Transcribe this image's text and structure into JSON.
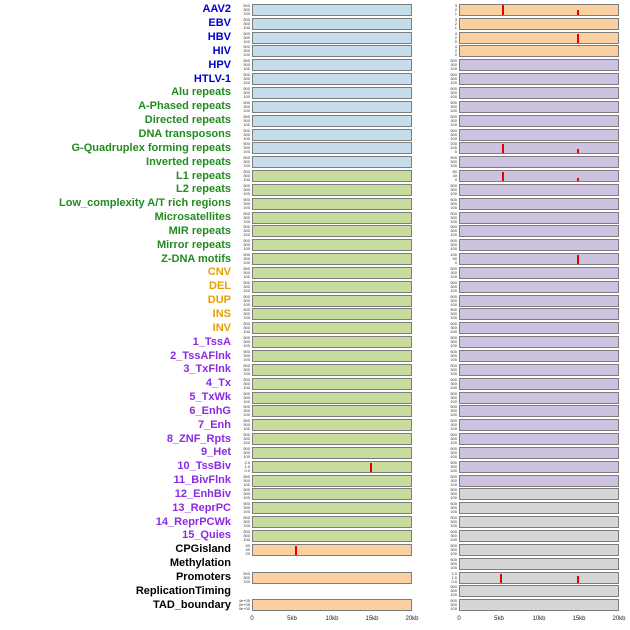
{
  "chart_data": {
    "type": "line",
    "layout": "small-multiples-two-columns",
    "x_ticks": [
      "0",
      "5kb",
      "10kb",
      "15kb",
      "20kb"
    ],
    "x_range_kb": [
      0,
      20
    ],
    "default_yticks": [
      "500",
      "300",
      "100"
    ],
    "palette": {
      "blue": "#C5DCEA",
      "green": "#C8DC9E",
      "purple": "#CDC3E0",
      "orange": "#FBD0A0",
      "gray": "#D6D6D6"
    },
    "spike_color": "#E80000",
    "group_colors": {
      "virus": "#0000CC",
      "repeat": "#228B22",
      "sv": "#E69F00",
      "state": "#8A2BE2",
      "feature": "#000000"
    },
    "rows": [
      {
        "label": "AAV2",
        "group": "virus",
        "left": {
          "fill": "blue"
        },
        "right": {
          "fill": "orange",
          "yticks": [
            "3",
            "2",
            "1"
          ],
          "spikes": [
            {
              "x_kb": 5.3,
              "h": 1.0
            },
            {
              "x_kb": 14.8,
              "h": 0.5
            }
          ]
        }
      },
      {
        "label": "EBV",
        "group": "virus",
        "left": {
          "fill": "blue"
        },
        "right": {
          "fill": "orange",
          "yticks": [
            "3",
            "2",
            "1"
          ]
        }
      },
      {
        "label": "HBV",
        "group": "virus",
        "left": {
          "fill": "blue"
        },
        "right": {
          "fill": "orange",
          "yticks": [
            "4",
            "2",
            "0"
          ],
          "spikes": [
            {
              "x_kb": 14.8,
              "h": 0.85
            }
          ]
        }
      },
      {
        "label": "HIV",
        "group": "virus",
        "left": {
          "fill": "blue"
        },
        "right": {
          "fill": "orange",
          "yticks": [
            "4",
            "2",
            "0"
          ]
        }
      },
      {
        "label": "HPV",
        "group": "virus",
        "left": {
          "fill": "blue"
        },
        "right": {
          "fill": "purple"
        }
      },
      {
        "label": "HTLV-1",
        "group": "virus",
        "left": {
          "fill": "blue"
        },
        "right": {
          "fill": "purple"
        }
      },
      {
        "label": "Alu repeats",
        "group": "repeat",
        "left": {
          "fill": "blue"
        },
        "right": {
          "fill": "purple"
        }
      },
      {
        "label": "A-Phased repeats",
        "group": "repeat",
        "left": {
          "fill": "blue"
        },
        "right": {
          "fill": "purple"
        }
      },
      {
        "label": "Directed repeats",
        "group": "repeat",
        "left": {
          "fill": "blue"
        },
        "right": {
          "fill": "purple"
        }
      },
      {
        "label": "DNA transposons",
        "group": "repeat",
        "left": {
          "fill": "blue"
        },
        "right": {
          "fill": "purple"
        }
      },
      {
        "label": "G-Quadruplex forming repeats",
        "group": "repeat",
        "left": {
          "fill": "blue"
        },
        "right": {
          "fill": "purple",
          "yticks": [
            "200",
            "100",
            "0"
          ],
          "spikes": [
            {
              "x_kb": 5.3,
              "h": 0.92
            },
            {
              "x_kb": 14.8,
              "h": 0.45
            }
          ]
        }
      },
      {
        "label": "Inverted repeats",
        "group": "repeat",
        "left": {
          "fill": "blue"
        },
        "right": {
          "fill": "purple"
        }
      },
      {
        "label": "L1 repeats",
        "group": "repeat",
        "left": {
          "fill": "green"
        },
        "right": {
          "fill": "purple",
          "yticks": [
            "80",
            "40",
            "0"
          ],
          "spikes": [
            {
              "x_kb": 5.3,
              "h": 0.92
            },
            {
              "x_kb": 14.8,
              "h": 0.35
            }
          ]
        }
      },
      {
        "label": "L2 repeats",
        "group": "repeat",
        "left": {
          "fill": "green"
        },
        "right": {
          "fill": "purple"
        }
      },
      {
        "label": "Low_complexity A/T rich regions",
        "group": "repeat",
        "left": {
          "fill": "green"
        },
        "right": {
          "fill": "purple"
        }
      },
      {
        "label": "Microsatellites",
        "group": "repeat",
        "left": {
          "fill": "green"
        },
        "right": {
          "fill": "purple"
        }
      },
      {
        "label": "MIR repeats",
        "group": "repeat",
        "left": {
          "fill": "green"
        },
        "right": {
          "fill": "purple"
        }
      },
      {
        "label": "Mirror repeats",
        "group": "repeat",
        "left": {
          "fill": "green"
        },
        "right": {
          "fill": "purple"
        }
      },
      {
        "label": "Z-DNA motifs",
        "group": "repeat",
        "left": {
          "fill": "green"
        },
        "right": {
          "fill": "purple",
          "yticks": [
            "100",
            "50",
            "0"
          ],
          "spikes": [
            {
              "x_kb": 14.8,
              "h": 0.92
            }
          ]
        }
      },
      {
        "label": "CNV",
        "group": "sv",
        "left": {
          "fill": "green"
        },
        "right": {
          "fill": "purple"
        }
      },
      {
        "label": "DEL",
        "group": "sv",
        "left": {
          "fill": "green"
        },
        "right": {
          "fill": "purple"
        }
      },
      {
        "label": "DUP",
        "group": "sv",
        "left": {
          "fill": "green"
        },
        "right": {
          "fill": "purple"
        }
      },
      {
        "label": "INS",
        "group": "sv",
        "left": {
          "fill": "green"
        },
        "right": {
          "fill": "purple"
        }
      },
      {
        "label": "INV",
        "group": "sv",
        "left": {
          "fill": "green"
        },
        "right": {
          "fill": "purple"
        }
      },
      {
        "label": "1_TssA",
        "group": "state",
        "left": {
          "fill": "green"
        },
        "right": {
          "fill": "purple"
        }
      },
      {
        "label": "2_TssAFlnk",
        "group": "state",
        "left": {
          "fill": "green"
        },
        "right": {
          "fill": "purple"
        }
      },
      {
        "label": "3_TxFlnk",
        "group": "state",
        "left": {
          "fill": "green"
        },
        "right": {
          "fill": "purple"
        }
      },
      {
        "label": "4_Tx",
        "group": "state",
        "left": {
          "fill": "green"
        },
        "right": {
          "fill": "purple"
        }
      },
      {
        "label": "5_TxWk",
        "group": "state",
        "left": {
          "fill": "green"
        },
        "right": {
          "fill": "purple"
        }
      },
      {
        "label": "6_EnhG",
        "group": "state",
        "left": {
          "fill": "green"
        },
        "right": {
          "fill": "purple"
        }
      },
      {
        "label": "7_Enh",
        "group": "state",
        "left": {
          "fill": "green"
        },
        "right": {
          "fill": "purple"
        }
      },
      {
        "label": "8_ZNF_Rpts",
        "group": "state",
        "left": {
          "fill": "green"
        },
        "right": {
          "fill": "purple"
        }
      },
      {
        "label": "9_Het",
        "group": "state",
        "left": {
          "fill": "green"
        },
        "right": {
          "fill": "purple"
        }
      },
      {
        "label": "10_TssBiv",
        "group": "state",
        "left": {
          "fill": "green",
          "yticks": [
            "2.0",
            "1.0",
            "0.0"
          ],
          "spikes": [
            {
              "x_kb": 14.8,
              "h": 0.85
            }
          ]
        },
        "right": {
          "fill": "purple"
        }
      },
      {
        "label": "11_BivFlnk",
        "group": "state",
        "left": {
          "fill": "green"
        },
        "right": {
          "fill": "purple"
        }
      },
      {
        "label": "12_EnhBiv",
        "group": "state",
        "left": {
          "fill": "green"
        },
        "right": {
          "fill": "gray"
        }
      },
      {
        "label": "13_ReprPC",
        "group": "state",
        "left": {
          "fill": "green"
        },
        "right": {
          "fill": "gray"
        }
      },
      {
        "label": "14_ReprPCWk",
        "group": "state",
        "left": {
          "fill": "green"
        },
        "right": {
          "fill": "gray"
        }
      },
      {
        "label": "15_Quies",
        "group": "state",
        "left": {
          "fill": "green"
        },
        "right": {
          "fill": "gray"
        }
      },
      {
        "label": "CPGisland",
        "group": "feature",
        "left": {
          "fill": "orange",
          "yticks": [
            "60",
            "40",
            "20"
          ],
          "spikes": [
            {
              "x_kb": 5.3,
              "h": 0.85
            }
          ]
        },
        "right": {
          "fill": "gray"
        }
      },
      {
        "label": "Methylation",
        "group": "feature",
        "left": null,
        "right": {
          "fill": "gray"
        }
      },
      {
        "label": "Promoters",
        "group": "feature",
        "left": {
          "fill": "orange"
        },
        "right": {
          "fill": "gray",
          "yticks": [
            "2.0",
            "1.0",
            "0.0"
          ],
          "spikes": [
            {
              "x_kb": 5.0,
              "h": 0.9
            },
            {
              "x_kb": 14.8,
              "h": 0.7
            }
          ]
        }
      },
      {
        "label": "ReplicationTiming",
        "group": "feature",
        "left": null,
        "right": {
          "fill": "gray"
        }
      },
      {
        "label": "TAD_boundary",
        "group": "feature",
        "left": {
          "fill": "orange",
          "yticks": [
            "4e+05",
            "2e+05",
            "0e+00"
          ]
        },
        "right": {
          "fill": "gray"
        }
      }
    ]
  }
}
